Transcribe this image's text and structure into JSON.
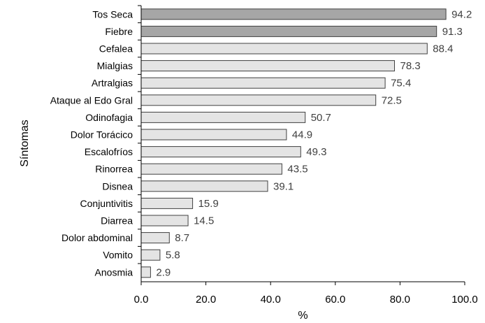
{
  "chart_data": {
    "type": "bar",
    "orientation": "horizontal",
    "categories": [
      "Tos Seca",
      "Fiebre",
      "Cefalea",
      "Mialgias",
      "Artralgias",
      "Ataque al Edo Gral",
      "Odinofagia",
      "Dolor Torácico",
      "Escalofríos",
      "Rinorrea",
      "Disnea",
      "Conjuntivitis",
      "Diarrea",
      "Dolor abdominal",
      "Vomito",
      "Anosmia"
    ],
    "values": [
      94.2,
      91.3,
      88.4,
      78.3,
      75.4,
      72.5,
      50.7,
      44.9,
      49.3,
      43.5,
      39.1,
      15.9,
      14.5,
      8.7,
      5.8,
      2.9
    ],
    "value_labels": [
      "94.2",
      "91.3",
      "88.4",
      "78.3",
      "75.4",
      "72.5",
      "50.7",
      "44.9",
      "49.3",
      "43.5",
      "39.1",
      "15.9",
      "14.5",
      "8.7",
      "5.8",
      "2.9"
    ],
    "highlighted": [
      true,
      true,
      false,
      false,
      false,
      false,
      false,
      false,
      false,
      false,
      false,
      false,
      false,
      false,
      false,
      false
    ],
    "xlabel": "%",
    "ylabel": "Síntomas",
    "xlim": [
      0,
      100
    ],
    "xticks": [
      "0.0",
      "20.0",
      "40.0",
      "60.0",
      "80.0",
      "100.0"
    ],
    "grid": false,
    "legend": "none",
    "colors": {
      "highlight_fill": "#a6a6a6",
      "bar_fill": "#e4e4e4",
      "bar_stroke": "#404040",
      "axis": "#000000",
      "value_text": "#404040"
    }
  }
}
